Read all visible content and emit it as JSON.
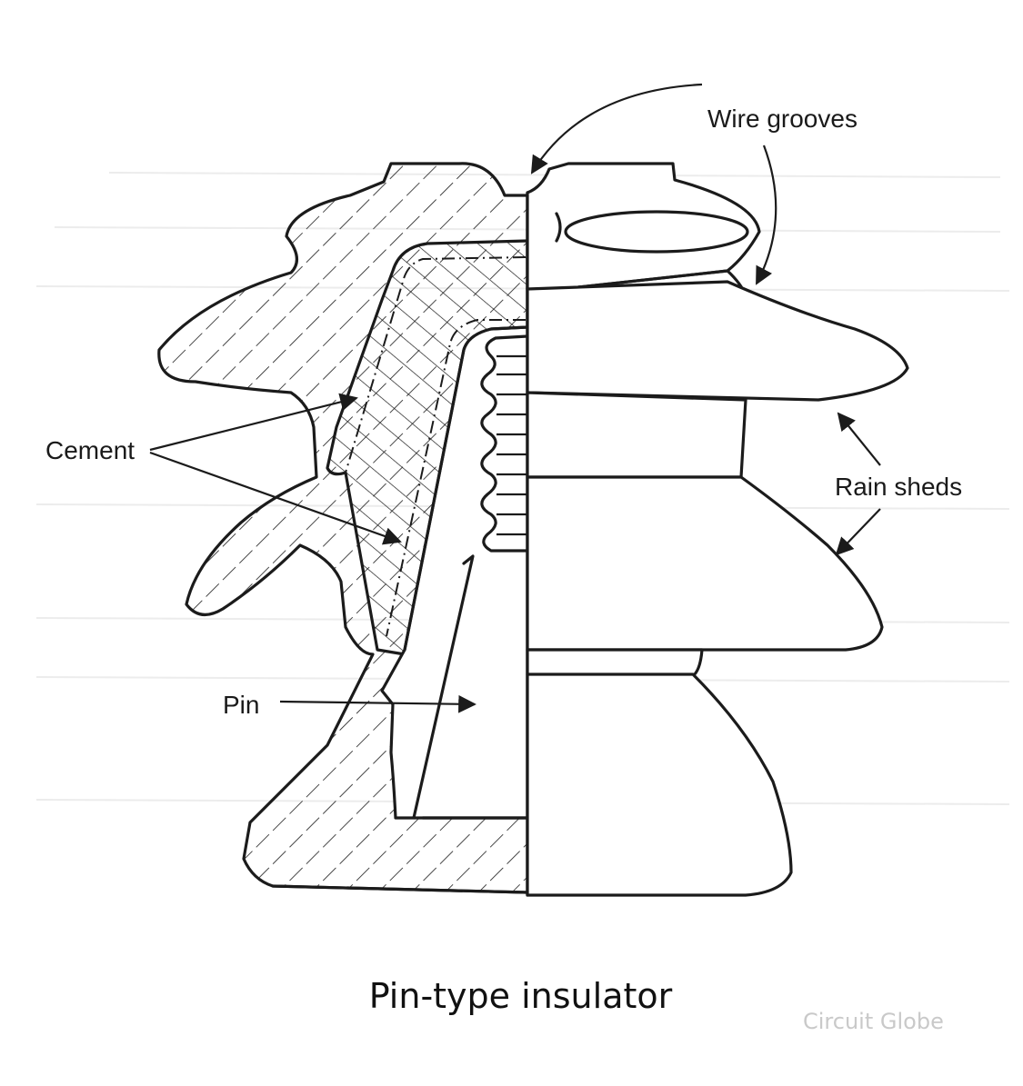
{
  "diagram": {
    "labels": {
      "wire_grooves": "Wire grooves",
      "cement": "Cement",
      "rain_sheds": "Rain sheds",
      "pin": "Pin"
    },
    "caption": "Pin-type insulator",
    "watermark": "Circuit Globe"
  }
}
